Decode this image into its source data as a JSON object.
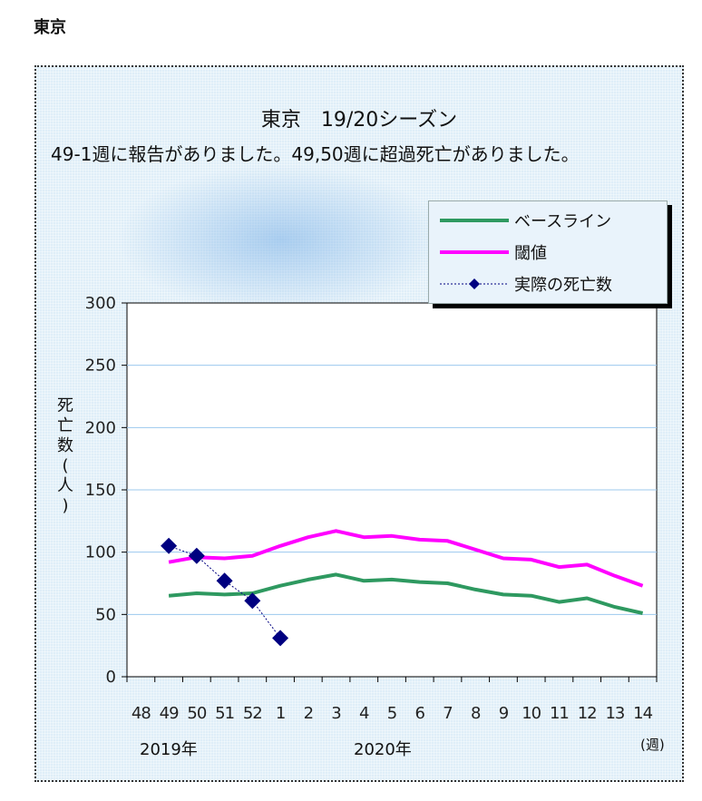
{
  "page_heading": "東京",
  "chart_data": {
    "type": "line",
    "title": "東京　19/20シーズン",
    "subtitle": "49-1週に報告がありました。49,50週に超過死亡がありました。",
    "ylabel": "死亡数(人)",
    "ylim": [
      0,
      300
    ],
    "yticks": [
      0,
      50,
      100,
      150,
      200,
      250,
      300
    ],
    "grid": true,
    "legend_position": "top-right",
    "categories": [
      "48",
      "49",
      "50",
      "51",
      "52",
      "1",
      "2",
      "3",
      "4",
      "5",
      "6",
      "7",
      "8",
      "9",
      "10",
      "11",
      "12",
      "13",
      "14"
    ],
    "year_labels": [
      "2019年",
      "2020年"
    ],
    "x_unit": "(週)",
    "series": [
      {
        "name": "ベースライン",
        "color": "#2e9960",
        "style": "solid",
        "values": [
          null,
          65,
          67,
          66,
          67,
          73,
          78,
          82,
          77,
          78,
          76,
          75,
          70,
          66,
          65,
          60,
          63,
          56,
          51
        ]
      },
      {
        "name": "閾値",
        "color": "#ff00ff",
        "style": "solid",
        "values": [
          null,
          92,
          96,
          95,
          97,
          105,
          112,
          117,
          112,
          113,
          110,
          109,
          102,
          95,
          94,
          88,
          90,
          81,
          73
        ]
      },
      {
        "name": "実際の死亡数",
        "color": "#000080",
        "style": "dotted-with-diamond-markers",
        "values": [
          null,
          105,
          97,
          77,
          61,
          31,
          null,
          null,
          null,
          null,
          null,
          null,
          null,
          null,
          null,
          null,
          null,
          null,
          null
        ]
      }
    ]
  }
}
